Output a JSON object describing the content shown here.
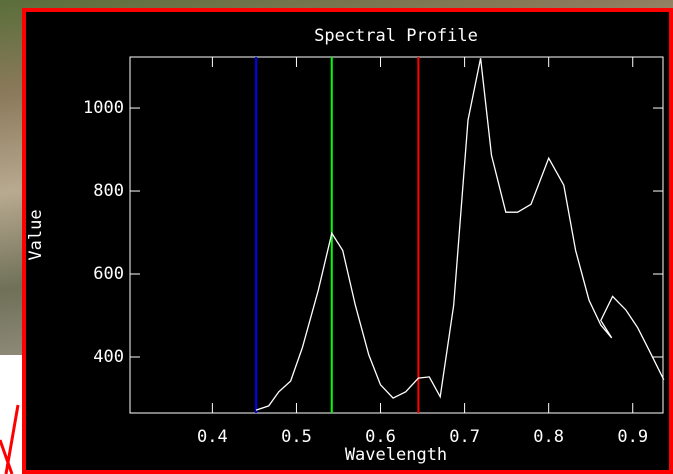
{
  "chart_data": {
    "type": "line",
    "title": "Spectral Profile",
    "x_label": "Wavelength",
    "y_label": "Value",
    "x": [
      0.452,
      0.467,
      0.479,
      0.493,
      0.507,
      0.526,
      0.542,
      0.555,
      0.57,
      0.586,
      0.6,
      0.615,
      0.63,
      0.645,
      0.658,
      0.671,
      0.687,
      0.704,
      0.719,
      0.732,
      0.749,
      0.763,
      0.779,
      0.8,
      0.818,
      0.832,
      0.848,
      0.862,
      0.875,
      0.862,
      0.876,
      0.892,
      0.906,
      0.921,
      0.937
    ],
    "values": [
      272,
      282,
      316,
      342,
      422,
      561,
      698,
      657,
      525,
      405,
      333,
      301,
      316,
      349,
      352,
      304,
      525,
      971,
      1120,
      886,
      749,
      749,
      768,
      879,
      814,
      657,
      537,
      477,
      446,
      488,
      546,
      513,
      470,
      410,
      345
    ],
    "color": "#ffffff",
    "markers": [
      {
        "value": 0.452,
        "color": "#0000ff"
      },
      {
        "value": 0.542,
        "color": "#00ff00"
      },
      {
        "value": 0.645,
        "color": "#ff0000"
      }
    ],
    "xlim": [
      0.302,
      0.936
    ],
    "ylim": [
      265,
      1123
    ],
    "xticks": [
      0.4,
      0.5,
      0.6,
      0.7,
      0.8,
      0.9
    ],
    "yticks": [
      400,
      600,
      800,
      1000
    ]
  }
}
